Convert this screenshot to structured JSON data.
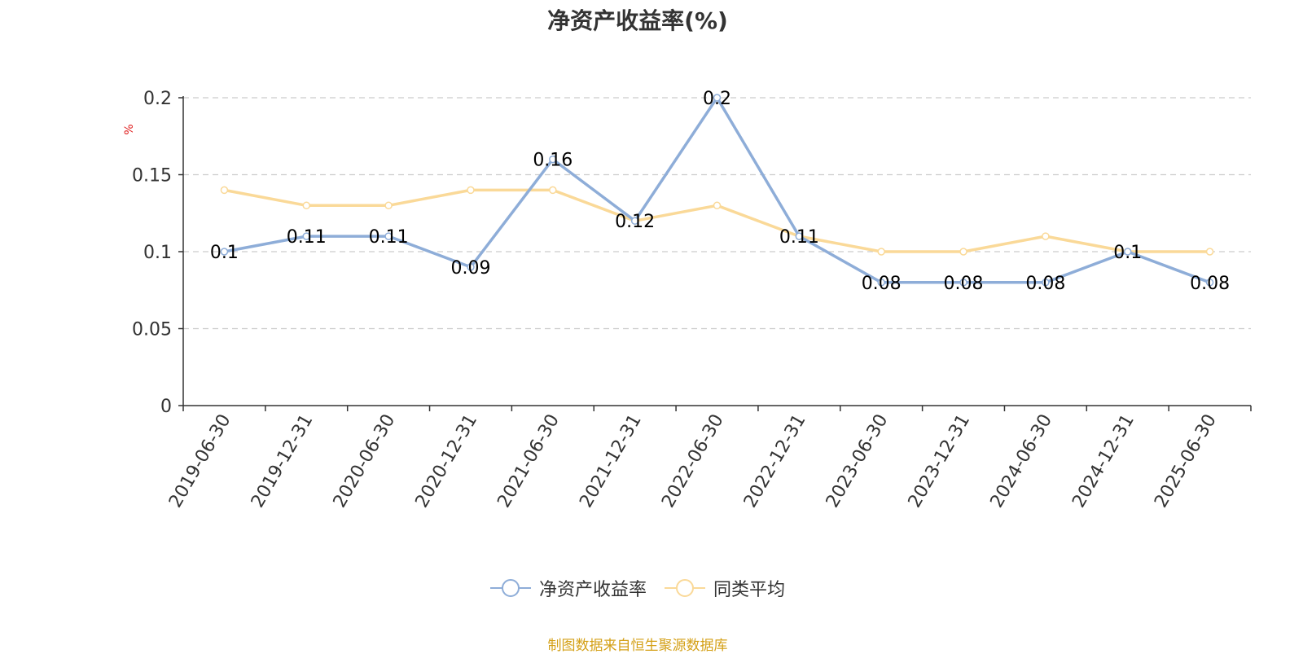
{
  "colors": {
    "series1": "#8eadd8",
    "series2": "#fad998",
    "axis": "#333333",
    "grid": "#cccccc",
    "ylabel": "#e02020",
    "source": "#d4a017"
  },
  "chart_data": {
    "type": "line",
    "title": "净资产收益率(%)",
    "ylabel": "%",
    "xlabel": "",
    "ylim": [
      0,
      0.2
    ],
    "yticks": [
      0,
      0.05,
      0.1,
      0.15,
      0.2
    ],
    "ytick_labels": [
      "0",
      "0.05",
      "0.1",
      "0.15",
      "0.2"
    ],
    "grid": true,
    "legend_position": "bottom",
    "categories": [
      "2019-06-30",
      "2019-12-31",
      "2020-06-30",
      "2020-12-31",
      "2021-06-30",
      "2021-12-31",
      "2022-06-30",
      "2022-12-31",
      "2023-06-30",
      "2023-12-31",
      "2024-06-30",
      "2024-12-31",
      "2025-06-30"
    ],
    "series": [
      {
        "name": "净资产收益率",
        "values": [
          0.1,
          0.11,
          0.11,
          0.09,
          0.16,
          0.12,
          0.2,
          0.11,
          0.08,
          0.08,
          0.08,
          0.1,
          0.08
        ],
        "labels": [
          "0.1",
          "0.11",
          "0.11",
          "0.09",
          "0.16",
          "0.12",
          "0.2",
          "0.11",
          "0.08",
          "0.08",
          "0.08",
          "0.1",
          "0.08"
        ]
      },
      {
        "name": "同类平均",
        "values": [
          0.14,
          0.13,
          0.13,
          0.14,
          0.14,
          0.12,
          0.13,
          0.11,
          0.1,
          0.1,
          0.11,
          0.1,
          0.1
        ]
      }
    ]
  },
  "legend": {
    "series1_label": "净资产收益率",
    "series2_label": "同类平均"
  },
  "source_note": "制图数据来自恒生聚源数据库"
}
